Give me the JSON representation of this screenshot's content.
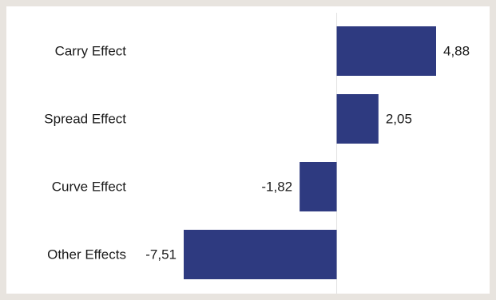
{
  "chart_data": {
    "type": "bar",
    "orientation": "horizontal",
    "categories": [
      "Carry Effect",
      "Spread Effect",
      "Curve Effect",
      "Other Effects"
    ],
    "values": [
      4.88,
      2.05,
      -1.82,
      -7.51
    ],
    "value_labels": [
      "4,88",
      "2,05",
      "-1,82",
      "-7,51"
    ],
    "title": "",
    "xlabel": "",
    "ylabel": "",
    "xlim": [
      -7.51,
      4.88
    ],
    "grid": false,
    "zero_line": true,
    "bar_color": "#2e3a80",
    "axis_line_color": "#e2e2e2",
    "background": "#ffffff",
    "page_background": "#e8e4df"
  }
}
